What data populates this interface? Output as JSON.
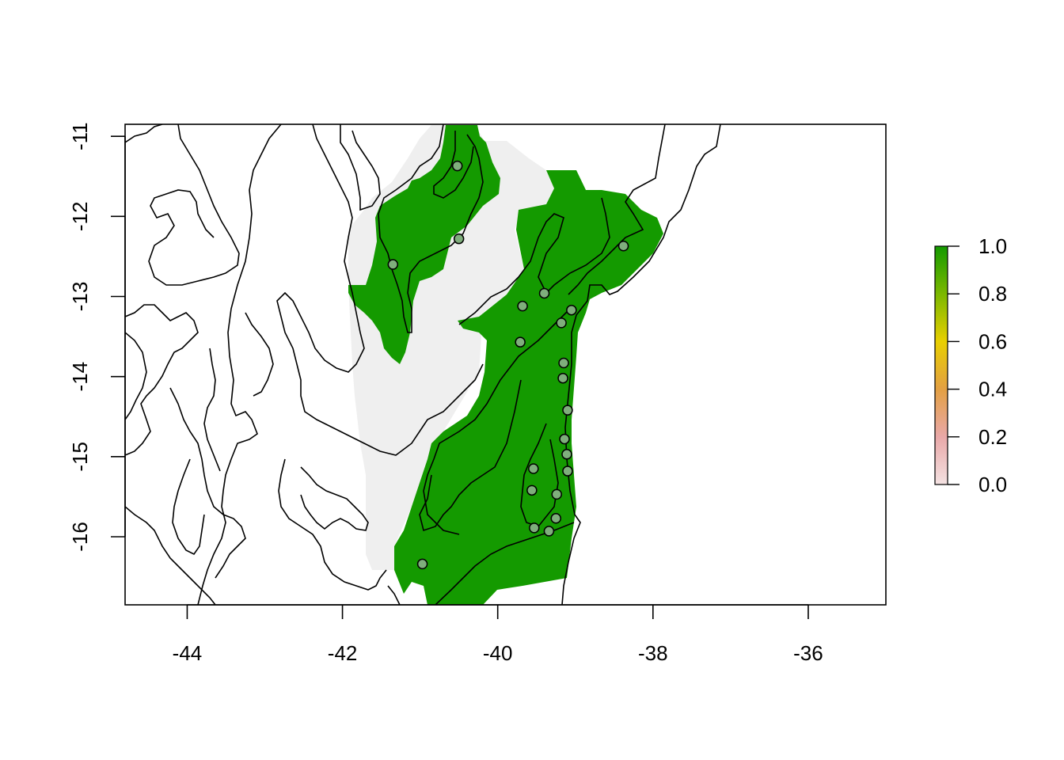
{
  "chart_data": {
    "type": "heatmap",
    "title": "",
    "xlabel": "",
    "ylabel": "",
    "xlim": [
      -44.8,
      -35.0
    ],
    "ylim": [
      -16.85,
      -10.85
    ],
    "x_ticks": [
      -44,
      -42,
      -40,
      -38,
      -36
    ],
    "x_tick_labels": [
      "-44",
      "-42",
      "-40",
      "-38",
      "-36"
    ],
    "y_ticks": [
      -11,
      -12,
      -13,
      -14,
      -15,
      -16
    ],
    "y_tick_labels": [
      "-11",
      "-12",
      "-13",
      "-14",
      "-15",
      "-16"
    ],
    "raster_colors": {
      "high": "#149a00",
      "low": "#efefef"
    },
    "legend": {
      "placement": "right",
      "values": [
        0.0,
        0.2,
        0.4,
        0.6,
        0.8,
        1.0
      ],
      "labels": [
        "0.0",
        "0.2",
        "0.4",
        "0.6",
        "0.8",
        "1.0"
      ],
      "colors": [
        "#f4e2e2",
        "#e9a8a8",
        "#e3a043",
        "#e8cf00",
        "#7bb800",
        "#149a00"
      ]
    },
    "occurrence_points": [
      {
        "x": -40.52,
        "y": -11.37
      },
      {
        "x": -40.5,
        "y": -12.28
      },
      {
        "x": -41.35,
        "y": -12.6
      },
      {
        "x": -38.38,
        "y": -12.37
      },
      {
        "x": -39.4,
        "y": -12.96
      },
      {
        "x": -39.68,
        "y": -13.12
      },
      {
        "x": -39.05,
        "y": -13.17
      },
      {
        "x": -39.18,
        "y": -13.33
      },
      {
        "x": -39.71,
        "y": -13.57
      },
      {
        "x": -39.15,
        "y": -13.83
      },
      {
        "x": -39.16,
        "y": -14.02
      },
      {
        "x": -39.1,
        "y": -14.42
      },
      {
        "x": -39.14,
        "y": -14.78
      },
      {
        "x": -39.11,
        "y": -14.97
      },
      {
        "x": -39.54,
        "y": -15.15
      },
      {
        "x": -39.1,
        "y": -15.18
      },
      {
        "x": -39.56,
        "y": -15.42
      },
      {
        "x": -39.24,
        "y": -15.47
      },
      {
        "x": -39.25,
        "y": -15.77
      },
      {
        "x": -39.53,
        "y": -15.89
      },
      {
        "x": -39.34,
        "y": -15.93
      },
      {
        "x": -40.97,
        "y": -16.34
      }
    ],
    "point_color": "#7fae7c"
  }
}
